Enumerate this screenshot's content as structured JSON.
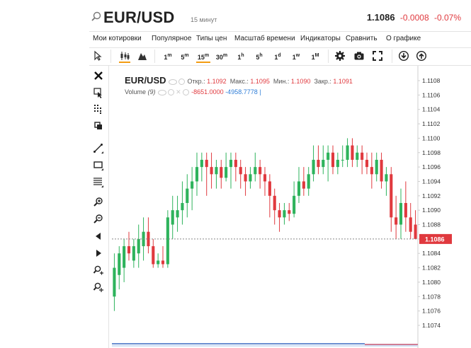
{
  "header": {
    "symbol": "EUR/USD",
    "interval": "15 минут",
    "last": "1.1086",
    "change": "-0.0008",
    "change_pct": "-0.07%"
  },
  "menu": [
    "Мои котировки",
    "Популярное",
    "Типы цен",
    "Масштаб времени",
    "Индикаторы",
    "Сравнить",
    "О графике"
  ],
  "toolbar": {
    "timeframes": [
      {
        "n": "1",
        "u": "m"
      },
      {
        "n": "5",
        "u": "m"
      },
      {
        "n": "15",
        "u": "m"
      },
      {
        "n": "30",
        "u": "m"
      },
      {
        "n": "1",
        "u": "h"
      },
      {
        "n": "5",
        "u": "h"
      },
      {
        "n": "1",
        "u": "d"
      },
      {
        "n": "1",
        "u": "w"
      },
      {
        "n": "1",
        "u": "M"
      }
    ],
    "active_timeframe": "15m"
  },
  "legend": {
    "symbol": "EUR/USD",
    "open_label": "Откр.:",
    "open": "1.1092",
    "high_label": "Макс.:",
    "high": "1.1095",
    "low_label": "Мин.:",
    "low": "1.1090",
    "close_label": "Закр.:",
    "close": "1.1091",
    "volume_label": "Volume",
    "volume_param": "(9)",
    "volume_v1": "-8651.0000",
    "volume_v2": "-4958.7778"
  },
  "chart_data": {
    "type": "candlestick",
    "interval": "15m",
    "y_axis": {
      "ticks": [
        "1.1108",
        "1.1106",
        "1.1104",
        "1.1102",
        "1.1100",
        "1.1098",
        "1.1096",
        "1.1094",
        "1.1092",
        "1.1090",
        "1.1088",
        "1.1086",
        "1.1084",
        "1.1082",
        "1.1080",
        "1.1078",
        "1.1076",
        "1.1074"
      ],
      "range": [
        1.1073,
        1.111
      ]
    },
    "last_price": 1.1086,
    "last_price_label": "1.1086",
    "colors": {
      "up": "#2eb35c",
      "down": "#e0393e",
      "last_label": "#e0393e"
    },
    "candles": [
      {
        "o": 1.1078,
        "h": 1.1084,
        "l": 1.1076,
        "c": 1.1082
      },
      {
        "o": 1.1081,
        "h": 1.1085,
        "l": 1.1079,
        "c": 1.1084
      },
      {
        "o": 1.1082,
        "h": 1.1086,
        "l": 1.108,
        "c": 1.1085
      },
      {
        "o": 1.1085,
        "h": 1.1087,
        "l": 1.1083,
        "c": 1.1084
      },
      {
        "o": 1.1083,
        "h": 1.1086,
        "l": 1.1082,
        "c": 1.1085
      },
      {
        "o": 1.1084,
        "h": 1.1088,
        "l": 1.1082,
        "c": 1.1086
      },
      {
        "o": 1.1085,
        "h": 1.1089,
        "l": 1.1083,
        "c": 1.1087
      },
      {
        "o": 1.1087,
        "h": 1.1089,
        "l": 1.1084,
        "c": 1.1085
      },
      {
        "o": 1.1085,
        "h": 1.1086,
        "l": 1.1082,
        "c": 1.10825
      },
      {
        "o": 1.10825,
        "h": 1.1084,
        "l": 1.1082,
        "c": 1.1083
      },
      {
        "o": 1.1083,
        "h": 1.1085,
        "l": 1.1082,
        "c": 1.10825
      },
      {
        "o": 1.10825,
        "h": 1.109,
        "l": 1.1082,
        "c": 1.1089
      },
      {
        "o": 1.1088,
        "h": 1.1092,
        "l": 1.1086,
        "c": 1.109
      },
      {
        "o": 1.1089,
        "h": 1.1092,
        "l": 1.1087,
        "c": 1.109
      },
      {
        "o": 1.109,
        "h": 1.1094,
        "l": 1.1088,
        "c": 1.1091
      },
      {
        "o": 1.1091,
        "h": 1.1095,
        "l": 1.1089,
        "c": 1.1093
      },
      {
        "o": 1.1093,
        "h": 1.1096,
        "l": 1.109,
        "c": 1.1094
      },
      {
        "o": 1.1094,
        "h": 1.1098,
        "l": 1.1092,
        "c": 1.1096
      },
      {
        "o": 1.1096,
        "h": 1.1098,
        "l": 1.1094,
        "c": 1.1097
      },
      {
        "o": 1.1097,
        "h": 1.1098,
        "l": 1.1092,
        "c": 1.1096
      },
      {
        "o": 1.1096,
        "h": 1.1098,
        "l": 1.1093,
        "c": 1.1095
      },
      {
        "o": 1.1095,
        "h": 1.1097,
        "l": 1.1093,
        "c": 1.1096
      },
      {
        "o": 1.1096,
        "h": 1.1097,
        "l": 1.1093,
        "c": 1.10945
      },
      {
        "o": 1.10945,
        "h": 1.1098,
        "l": 1.1094,
        "c": 1.1096
      },
      {
        "o": 1.1096,
        "h": 1.1098,
        "l": 1.1093,
        "c": 1.1097
      },
      {
        "o": 1.1097,
        "h": 1.1098,
        "l": 1.1094,
        "c": 1.1096
      },
      {
        "o": 1.1096,
        "h": 1.1097,
        "l": 1.1093,
        "c": 1.1095
      },
      {
        "o": 1.1095,
        "h": 1.1096,
        "l": 1.1092,
        "c": 1.1094
      },
      {
        "o": 1.1094,
        "h": 1.1096,
        "l": 1.1093,
        "c": 1.1095
      },
      {
        "o": 1.1095,
        "h": 1.1098,
        "l": 1.1094,
        "c": 1.1096
      },
      {
        "o": 1.1096,
        "h": 1.1097,
        "l": 1.1093,
        "c": 1.1095
      },
      {
        "o": 1.1095,
        "h": 1.1096,
        "l": 1.1092,
        "c": 1.1094
      },
      {
        "o": 1.1094,
        "h": 1.1095,
        "l": 1.1089,
        "c": 1.1092
      },
      {
        "o": 1.1092,
        "h": 1.1093,
        "l": 1.1088,
        "c": 1.109
      },
      {
        "o": 1.109,
        "h": 1.1091,
        "l": 1.1087,
        "c": 1.1089
      },
      {
        "o": 1.1089,
        "h": 1.1091,
        "l": 1.1088,
        "c": 1.109
      },
      {
        "o": 1.109,
        "h": 1.1091,
        "l": 1.10885,
        "c": 1.10895
      },
      {
        "o": 1.10895,
        "h": 1.1094,
        "l": 1.1089,
        "c": 1.1092
      },
      {
        "o": 1.1092,
        "h": 1.1096,
        "l": 1.1091,
        "c": 1.1094
      },
      {
        "o": 1.1094,
        "h": 1.1096,
        "l": 1.1092,
        "c": 1.1093
      },
      {
        "o": 1.1093,
        "h": 1.1096,
        "l": 1.1092,
        "c": 1.1095
      },
      {
        "o": 1.1095,
        "h": 1.1099,
        "l": 1.1094,
        "c": 1.1097
      },
      {
        "o": 1.1097,
        "h": 1.1099,
        "l": 1.1095,
        "c": 1.1096
      },
      {
        "o": 1.1096,
        "h": 1.1099,
        "l": 1.1095,
        "c": 1.1097
      },
      {
        "o": 1.1097,
        "h": 1.1099,
        "l": 1.1094,
        "c": 1.1098
      },
      {
        "o": 1.1098,
        "h": 1.1099,
        "l": 1.1095,
        "c": 1.1096
      },
      {
        "o": 1.1096,
        "h": 1.1098,
        "l": 1.1095,
        "c": 1.1097
      },
      {
        "o": 1.1097,
        "h": 1.1099,
        "l": 1.1096,
        "c": 1.1097
      },
      {
        "o": 1.1097,
        "h": 1.11,
        "l": 1.1096,
        "c": 1.1099
      },
      {
        "o": 1.1099,
        "h": 1.11,
        "l": 1.1096,
        "c": 1.1097
      },
      {
        "o": 1.1097,
        "h": 1.1099,
        "l": 1.1096,
        "c": 1.1098
      },
      {
        "o": 1.1098,
        "h": 1.1099,
        "l": 1.1095,
        "c": 1.1097
      },
      {
        "o": 1.1097,
        "h": 1.1098,
        "l": 1.1095,
        "c": 1.1096
      },
      {
        "o": 1.1096,
        "h": 1.1098,
        "l": 1.1093,
        "c": 1.1095
      },
      {
        "o": 1.1095,
        "h": 1.1098,
        "l": 1.1094,
        "c": 1.1097
      },
      {
        "o": 1.1097,
        "h": 1.1098,
        "l": 1.1093,
        "c": 1.1094
      },
      {
        "o": 1.1094,
        "h": 1.1096,
        "l": 1.1092,
        "c": 1.1095
      },
      {
        "o": 1.1095,
        "h": 1.1096,
        "l": 1.1087,
        "c": 1.1089
      },
      {
        "o": 1.1089,
        "h": 1.1092,
        "l": 1.1086,
        "c": 1.1088
      },
      {
        "o": 1.1088,
        "h": 1.1093,
        "l": 1.1086,
        "c": 1.1091
      },
      {
        "o": 1.1091,
        "h": 1.1094,
        "l": 1.1087,
        "c": 1.1089
      },
      {
        "o": 1.1089,
        "h": 1.1091,
        "l": 1.1086,
        "c": 1.1087
      },
      {
        "o": 1.1088,
        "h": 1.109,
        "l": 1.1086,
        "c": 1.1086
      }
    ]
  }
}
